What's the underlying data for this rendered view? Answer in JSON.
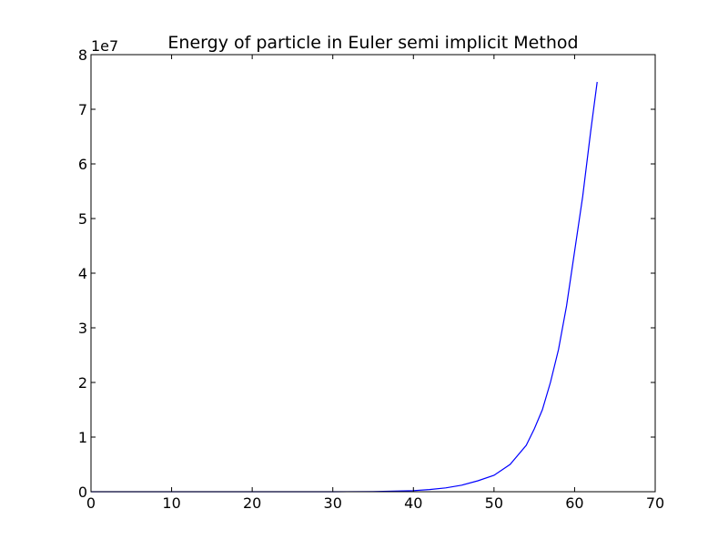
{
  "chart_data": {
    "type": "line",
    "title": "Energy of particle in Euler semi implicit Method",
    "xlabel": "",
    "ylabel": "",
    "xlim": [
      0,
      70
    ],
    "ylim": [
      0,
      8
    ],
    "y_offset_label": "1e7",
    "y_scale_factor": 10000000,
    "grid": false,
    "xticks": [
      "0",
      "10",
      "20",
      "30",
      "40",
      "50",
      "60",
      "70"
    ],
    "yticks": [
      "0",
      "1",
      "2",
      "3",
      "4",
      "5",
      "6",
      "7",
      "8"
    ],
    "series": [
      {
        "color": "#0000ff",
        "x": [
          0,
          5,
          10,
          15,
          20,
          25,
          30,
          35,
          40,
          42,
          44,
          46,
          48,
          50,
          52,
          54,
          55,
          56,
          57,
          58,
          59,
          60,
          61,
          62,
          62.8
        ],
        "y": [
          0,
          0,
          0,
          0,
          0,
          0,
          0,
          0.003,
          0.02,
          0.04,
          0.07,
          0.12,
          0.2,
          0.3,
          0.5,
          0.85,
          1.15,
          1.5,
          2.0,
          2.6,
          3.4,
          4.4,
          5.4,
          6.6,
          7.5
        ]
      }
    ]
  }
}
